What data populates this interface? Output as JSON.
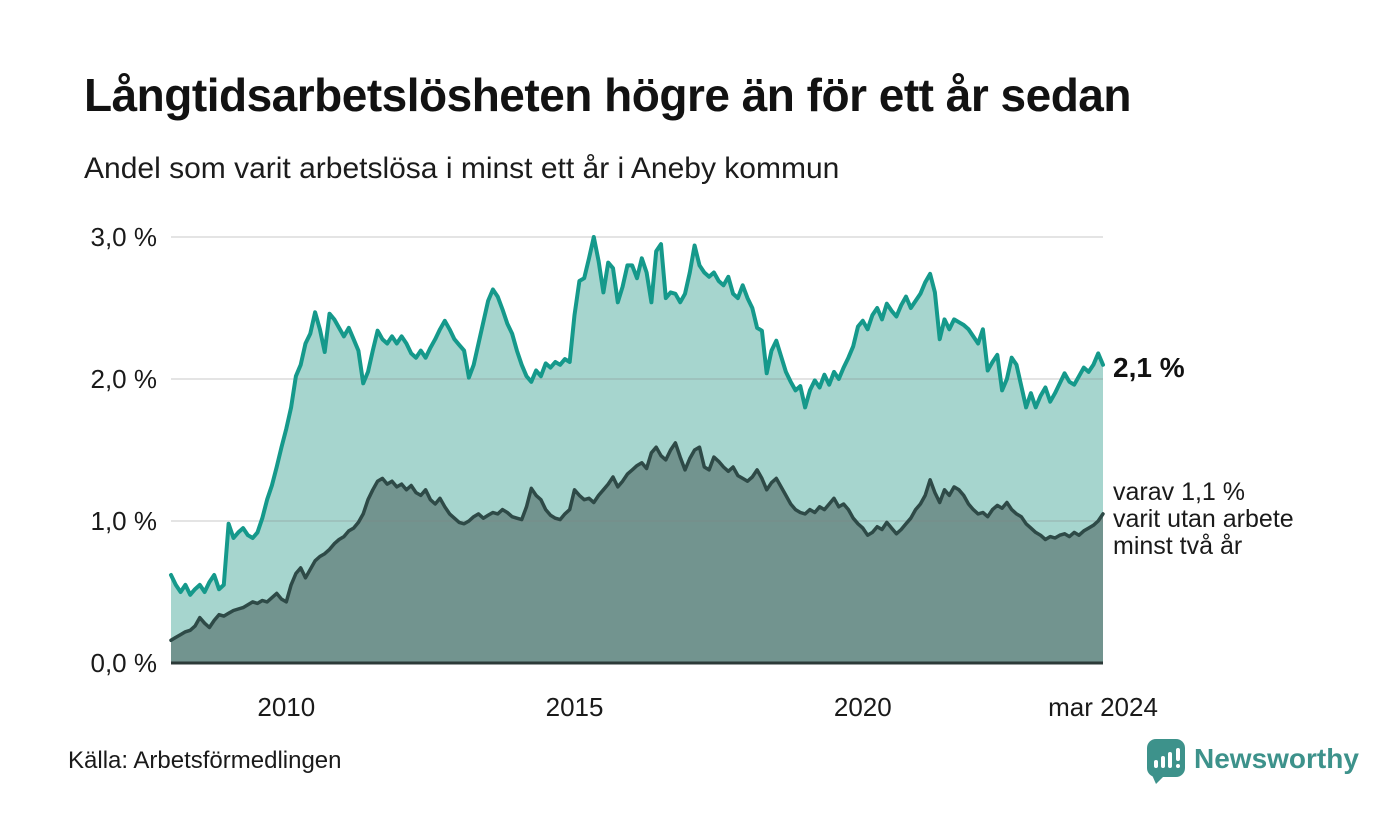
{
  "page": {
    "title": "Långtidsarbetslösheten högre än för ett år sedan",
    "subtitle": "Andel som varit arbetslösa i minst ett år i Aneby kommun"
  },
  "annotations": {
    "primary_end_label": "2,1 %",
    "secondary_lines": [
      "varav 1,1 %",
      "varit utan arbete",
      "minst två år"
    ]
  },
  "footer": {
    "source": "Källa: Arbetsförmedlingen",
    "logo_text": "Newsworthy"
  },
  "colors": {
    "outer_line": "#15998b",
    "outer_fill": "#a6d5ce",
    "inner_line": "#2e4a47",
    "inner_fill": "#72948f",
    "grid": "rgba(130,130,130,0.35)",
    "axis": "#2c3a38",
    "brand": "#3d928b",
    "text": "#141414"
  },
  "chart_data": {
    "type": "area",
    "title": "Långtidsarbetslösheten högre än för ett år sedan",
    "subtitle": "Andel som varit arbetslösa i minst ett år i Aneby kommun",
    "unit": "%",
    "frequency": "monthly",
    "x_start": "2008-01",
    "x_end": "2024-03",
    "ylim": [
      0,
      3.0
    ],
    "grid": true,
    "legend_position": "none",
    "yticks": [
      {
        "value": 0.0,
        "label": "0,0 %"
      },
      {
        "value": 1.0,
        "label": "1,0 %"
      },
      {
        "value": 2.0,
        "label": "2,0 %"
      },
      {
        "value": 3.0,
        "label": "3,0 %"
      }
    ],
    "xticks": [
      {
        "label": "2010",
        "month_index": 24
      },
      {
        "label": "2015",
        "month_index": 84
      },
      {
        "label": "2020",
        "month_index": 144
      },
      {
        "label": "mar 2024",
        "month_index": 194
      }
    ],
    "series": [
      {
        "name": "Andel arbetslösa minst ett år",
        "end_value_label": "2,1 %",
        "line_color": "#15998b",
        "fill_color": "#a6d5ce",
        "line_width": 4,
        "values": [
          0.62,
          0.55,
          0.5,
          0.55,
          0.48,
          0.52,
          0.55,
          0.5,
          0.57,
          0.62,
          0.52,
          0.55,
          0.98,
          0.88,
          0.92,
          0.95,
          0.9,
          0.88,
          0.92,
          1.02,
          1.15,
          1.25,
          1.38,
          1.52,
          1.65,
          1.8,
          2.02,
          2.1,
          2.25,
          2.32,
          2.47,
          2.35,
          2.19,
          2.46,
          2.42,
          2.36,
          2.3,
          2.36,
          2.28,
          2.2,
          1.97,
          2.05,
          2.2,
          2.34,
          2.28,
          2.25,
          2.3,
          2.25,
          2.3,
          2.25,
          2.18,
          2.15,
          2.2,
          2.15,
          2.22,
          2.28,
          2.35,
          2.41,
          2.35,
          2.28,
          2.24,
          2.2,
          2.01,
          2.1,
          2.25,
          2.4,
          2.55,
          2.63,
          2.58,
          2.49,
          2.39,
          2.32,
          2.2,
          2.1,
          2.02,
          1.98,
          2.06,
          2.02,
          2.11,
          2.08,
          2.12,
          2.1,
          2.14,
          2.12,
          2.45,
          2.69,
          2.71,
          2.85,
          3.0,
          2.83,
          2.61,
          2.82,
          2.78,
          2.54,
          2.65,
          2.8,
          2.8,
          2.71,
          2.85,
          2.75,
          2.54,
          2.9,
          2.95,
          2.57,
          2.61,
          2.6,
          2.54,
          2.6,
          2.75,
          2.94,
          2.8,
          2.75,
          2.72,
          2.75,
          2.69,
          2.66,
          2.72,
          2.6,
          2.57,
          2.66,
          2.57,
          2.5,
          2.36,
          2.34,
          2.04,
          2.2,
          2.27,
          2.16,
          2.05,
          1.98,
          1.92,
          1.95,
          1.8,
          1.92,
          1.99,
          1.94,
          2.03,
          1.96,
          2.05,
          2.0,
          2.08,
          2.15,
          2.23,
          2.37,
          2.41,
          2.35,
          2.45,
          2.5,
          2.42,
          2.53,
          2.48,
          2.44,
          2.52,
          2.58,
          2.5,
          2.55,
          2.6,
          2.68,
          2.74,
          2.61,
          2.28,
          2.42,
          2.35,
          2.42,
          2.4,
          2.38,
          2.35,
          2.3,
          2.25,
          2.35,
          2.06,
          2.12,
          2.17,
          1.92,
          2.0,
          2.15,
          2.1,
          1.95,
          1.8,
          1.9,
          1.8,
          1.88,
          1.94,
          1.84,
          1.9,
          1.97,
          2.04,
          1.98,
          1.96,
          2.02,
          2.08,
          2.05,
          2.1,
          2.18,
          2.1
        ]
      },
      {
        "name": "Andel arbetslösa minst två år",
        "end_value_label": "varav 1,1 % varit utan arbete minst två år",
        "line_color": "#2e4a47",
        "fill_color": "#72948f",
        "line_width": 3.5,
        "values": [
          0.16,
          0.18,
          0.2,
          0.22,
          0.23,
          0.26,
          0.32,
          0.28,
          0.25,
          0.3,
          0.34,
          0.33,
          0.35,
          0.37,
          0.38,
          0.39,
          0.41,
          0.43,
          0.42,
          0.44,
          0.43,
          0.46,
          0.49,
          0.45,
          0.43,
          0.55,
          0.63,
          0.67,
          0.6,
          0.66,
          0.72,
          0.75,
          0.77,
          0.8,
          0.84,
          0.87,
          0.89,
          0.93,
          0.95,
          0.99,
          1.05,
          1.15,
          1.22,
          1.28,
          1.3,
          1.26,
          1.28,
          1.24,
          1.26,
          1.22,
          1.25,
          1.2,
          1.18,
          1.22,
          1.15,
          1.12,
          1.16,
          1.1,
          1.05,
          1.02,
          0.99,
          0.98,
          1.0,
          1.03,
          1.05,
          1.02,
          1.04,
          1.06,
          1.05,
          1.08,
          1.06,
          1.03,
          1.02,
          1.01,
          1.1,
          1.23,
          1.18,
          1.15,
          1.08,
          1.04,
          1.02,
          1.01,
          1.05,
          1.08,
          1.22,
          1.18,
          1.15,
          1.16,
          1.13,
          1.18,
          1.22,
          1.26,
          1.31,
          1.24,
          1.28,
          1.33,
          1.36,
          1.39,
          1.41,
          1.37,
          1.48,
          1.52,
          1.46,
          1.43,
          1.5,
          1.55,
          1.45,
          1.36,
          1.44,
          1.5,
          1.52,
          1.38,
          1.36,
          1.45,
          1.42,
          1.38,
          1.35,
          1.38,
          1.32,
          1.3,
          1.28,
          1.31,
          1.36,
          1.3,
          1.22,
          1.27,
          1.3,
          1.24,
          1.18,
          1.12,
          1.08,
          1.06,
          1.05,
          1.08,
          1.06,
          1.1,
          1.08,
          1.12,
          1.16,
          1.1,
          1.12,
          1.08,
          1.02,
          0.98,
          0.95,
          0.9,
          0.92,
          0.96,
          0.94,
          0.99,
          0.95,
          0.91,
          0.94,
          0.98,
          1.02,
          1.08,
          1.12,
          1.18,
          1.29,
          1.2,
          1.13,
          1.22,
          1.18,
          1.24,
          1.22,
          1.18,
          1.12,
          1.08,
          1.05,
          1.06,
          1.03,
          1.08,
          1.11,
          1.09,
          1.13,
          1.08,
          1.05,
          1.03,
          0.98,
          0.95,
          0.92,
          0.9,
          0.87,
          0.89,
          0.88,
          0.9,
          0.91,
          0.89,
          0.92,
          0.9,
          0.93,
          0.95,
          0.97,
          1.0,
          1.05
        ]
      }
    ]
  }
}
